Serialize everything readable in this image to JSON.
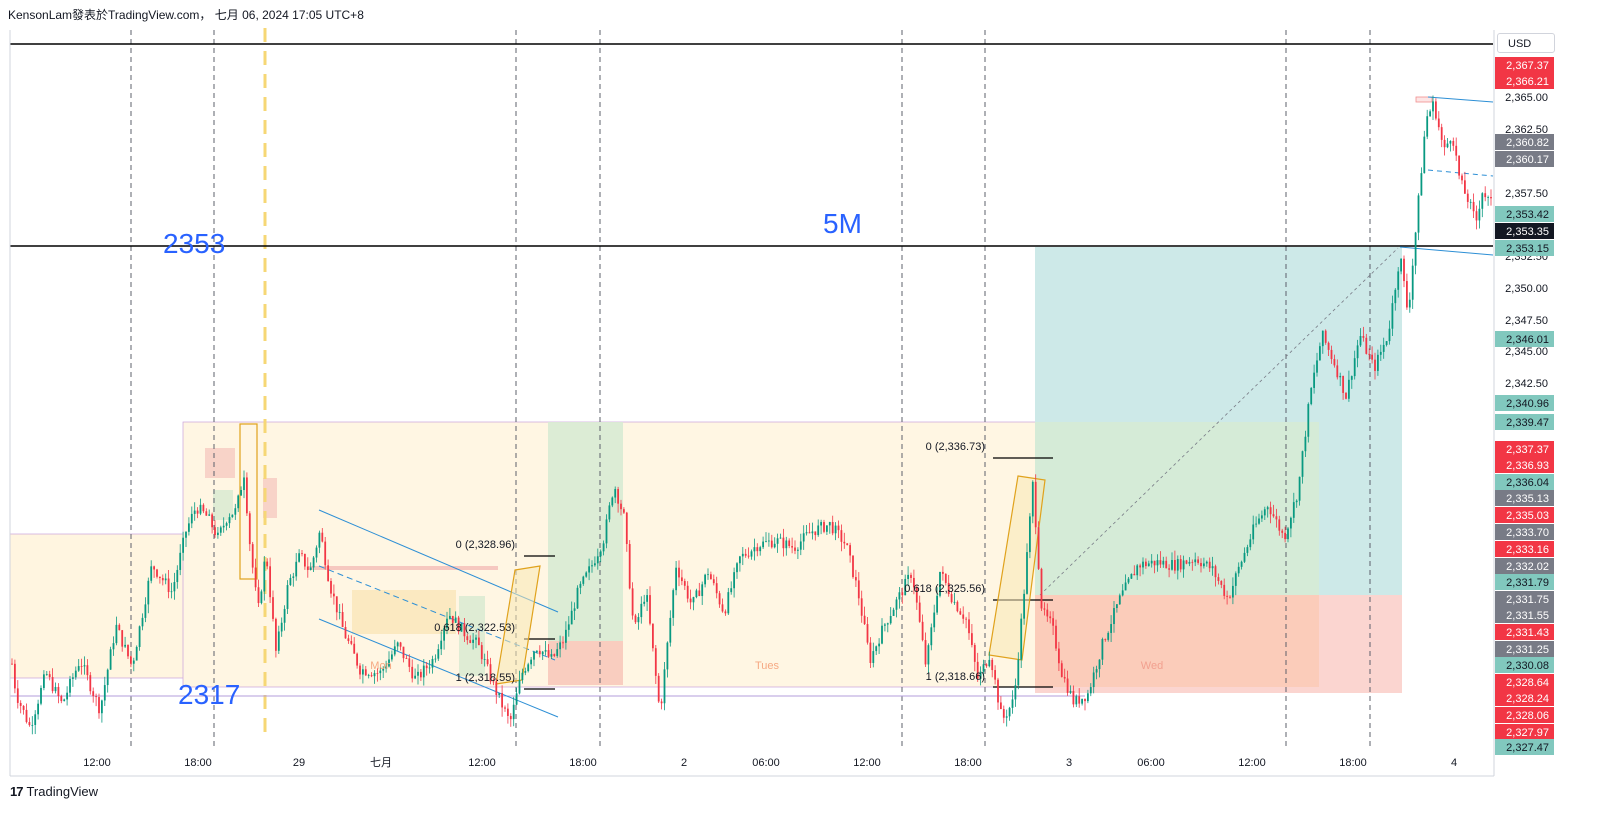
{
  "header": {
    "title": "KensonLam發表於TradingView.com",
    "separator": "，",
    "date": "七月 06, 2024 17:05 UTC+8"
  },
  "footer": {
    "logo_mark": "17",
    "brand": "TradingView"
  },
  "currency": "USD",
  "chart_data": {
    "type": "candlestick",
    "y_range": [
      2314.9,
      2369.0
    ],
    "x_tick_labels": [
      "12:00",
      "18:00",
      "29",
      "七月",
      "12:00",
      "18:00",
      "2",
      "06:00",
      "12:00",
      "18:00",
      "3",
      "06:00",
      "12:00",
      "18:00",
      "4"
    ],
    "price_scale_ticks": [
      "2,365.00",
      "2,362.50",
      "2,357.50",
      "2,352.50",
      "2,350.00",
      "2,347.50",
      "2,345.00",
      "2,342.50"
    ],
    "price_badges": [
      {
        "value": "2,367.37",
        "color": "#f23645"
      },
      {
        "value": "2,366.21",
        "color": "#f23645"
      },
      {
        "value": "2,360.82",
        "color": "#787b86"
      },
      {
        "value": "2,360.17",
        "color": "#787b86"
      },
      {
        "value": "2,353.42",
        "color": "#81c8be"
      },
      {
        "value": "2,353.35",
        "color": "#131722"
      },
      {
        "value": "2,353.15",
        "color": "#81c8be"
      },
      {
        "value": "2,346.01",
        "color": "#81c8be"
      },
      {
        "value": "2,340.96",
        "color": "#81c8be"
      },
      {
        "value": "2,339.47",
        "color": "#81c8be"
      },
      {
        "value": "2,337.37",
        "color": "#f23645"
      },
      {
        "value": "2,336.93",
        "color": "#f23645"
      },
      {
        "value": "2,336.04",
        "color": "#81c8be"
      },
      {
        "value": "2,335.13",
        "color": "#787b86"
      },
      {
        "value": "2,335.03",
        "color": "#f23645"
      },
      {
        "value": "2,333.70",
        "color": "#787b86"
      },
      {
        "value": "2,333.16",
        "color": "#f23645"
      },
      {
        "value": "2,332.02",
        "color": "#787b86"
      },
      {
        "value": "2,331.79",
        "color": "#81c8be"
      },
      {
        "value": "2,331.75",
        "color": "#787b86"
      },
      {
        "value": "2,331.55",
        "color": "#787b86"
      },
      {
        "value": "2,331.43",
        "color": "#f23645"
      },
      {
        "value": "2,331.25",
        "color": "#787b86"
      },
      {
        "value": "2,330.08",
        "color": "#81c8be"
      },
      {
        "value": "2,328.64",
        "color": "#f23645"
      },
      {
        "value": "2,328.24",
        "color": "#f23645"
      },
      {
        "value": "2,328.06",
        "color": "#f23645"
      },
      {
        "value": "2,327.97",
        "color": "#f23645"
      },
      {
        "value": "2,327.47",
        "color": "#81c8be"
      }
    ],
    "annotations": {
      "level_2353": "2353",
      "level_2317": "2317",
      "timeframe": "5M",
      "days": [
        "Mon",
        "Tues",
        "Wed"
      ],
      "fib_left": [
        "0 (2,328.96)",
        "0.618 (2,322.53)",
        "1 (2,318.55)"
      ],
      "fib_right": [
        "0 (2,336.73)",
        "0.618 (2,325.56)",
        "1 (2,318.66)"
      ]
    },
    "anchor_points": [
      [
        0,
        2327.5
      ],
      [
        6,
        2326.5
      ],
      [
        16,
        2321.0
      ],
      [
        30,
        2318.5
      ],
      [
        46,
        2322.5
      ],
      [
        62,
        2320.2
      ],
      [
        80,
        2323.5
      ],
      [
        100,
        2319.8
      ],
      [
        116,
        2326.0
      ],
      [
        132,
        2323.0
      ],
      [
        152,
        2330.5
      ],
      [
        172,
        2328.5
      ],
      [
        186,
        2333.0
      ],
      [
        196,
        2334.8
      ],
      [
        208,
        2334.0
      ],
      [
        218,
        2332.5
      ],
      [
        228,
        2334.2
      ],
      [
        236,
        2334.5
      ],
      [
        244,
        2337.3
      ],
      [
        250,
        2332.0
      ],
      [
        258,
        2327.0
      ],
      [
        266,
        2331.5
      ],
      [
        276,
        2324.0
      ],
      [
        288,
        2329.0
      ],
      [
        300,
        2331.2
      ],
      [
        310,
        2330.0
      ],
      [
        320,
        2333.0
      ],
      [
        330,
        2329.0
      ],
      [
        344,
        2325.5
      ],
      [
        360,
        2322.8
      ],
      [
        380,
        2322.5
      ],
      [
        398,
        2324.6
      ],
      [
        416,
        2322.0
      ],
      [
        434,
        2323.6
      ],
      [
        448,
        2327.0
      ],
      [
        464,
        2325.5
      ],
      [
        478,
        2324.6
      ],
      [
        494,
        2321.5
      ],
      [
        510,
        2318.8
      ],
      [
        522,
        2322.5
      ],
      [
        536,
        2324.5
      ],
      [
        552,
        2323.5
      ],
      [
        564,
        2325.0
      ],
      [
        578,
        2328.5
      ],
      [
        592,
        2330.5
      ],
      [
        604,
        2332.5
      ],
      [
        614,
        2336.5
      ],
      [
        624,
        2334.0
      ],
      [
        634,
        2325.5
      ],
      [
        646,
        2328.6
      ],
      [
        660,
        2319.5
      ],
      [
        676,
        2330.5
      ],
      [
        692,
        2327.5
      ],
      [
        708,
        2330.0
      ],
      [
        724,
        2327.0
      ],
      [
        740,
        2331.0
      ],
      [
        758,
        2332.0
      ],
      [
        776,
        2332.3
      ],
      [
        794,
        2331.8
      ],
      [
        812,
        2333.0
      ],
      [
        830,
        2333.5
      ],
      [
        846,
        2332.0
      ],
      [
        858,
        2328.5
      ],
      [
        870,
        2323.5
      ],
      [
        884,
        2326.0
      ],
      [
        898,
        2328.0
      ],
      [
        912,
        2330.0
      ],
      [
        926,
        2323.0
      ],
      [
        940,
        2330.0
      ],
      [
        954,
        2327.8
      ],
      [
        966,
        2326.5
      ],
      [
        978,
        2322.0
      ],
      [
        990,
        2324.0
      ],
      [
        1002,
        2319.0
      ],
      [
        1014,
        2320.5
      ],
      [
        1024,
        2328.5
      ],
      [
        1033,
        2336.6
      ],
      [
        1042,
        2327.0
      ],
      [
        1052,
        2326.0
      ],
      [
        1062,
        2322.5
      ],
      [
        1074,
        2320.3
      ],
      [
        1088,
        2321.0
      ],
      [
        1104,
        2325.0
      ],
      [
        1120,
        2328.0
      ],
      [
        1138,
        2330.5
      ],
      [
        1156,
        2330.7
      ],
      [
        1176,
        2330.5
      ],
      [
        1196,
        2331.0
      ],
      [
        1212,
        2330.2
      ],
      [
        1228,
        2328.0
      ],
      [
        1240,
        2330.5
      ],
      [
        1254,
        2333.2
      ],
      [
        1268,
        2335.0
      ],
      [
        1284,
        2332.5
      ],
      [
        1298,
        2336.0
      ],
      [
        1310,
        2343.0
      ],
      [
        1322,
        2347.5
      ],
      [
        1334,
        2345.5
      ],
      [
        1346,
        2343.0
      ],
      [
        1360,
        2347.5
      ],
      [
        1374,
        2345.0
      ],
      [
        1388,
        2347.5
      ],
      [
        1400,
        2353.5
      ],
      [
        1408,
        2349.0
      ],
      [
        1418,
        2357.0
      ],
      [
        1426,
        2363.5
      ],
      [
        1434,
        2364.6
      ],
      [
        1444,
        2361.0
      ],
      [
        1452,
        2362.5
      ],
      [
        1460,
        2358.8
      ],
      [
        1468,
        2357.5
      ],
      [
        1476,
        2355.8
      ],
      [
        1482,
        2358.2
      ],
      [
        1490,
        2357.2
      ]
    ]
  }
}
